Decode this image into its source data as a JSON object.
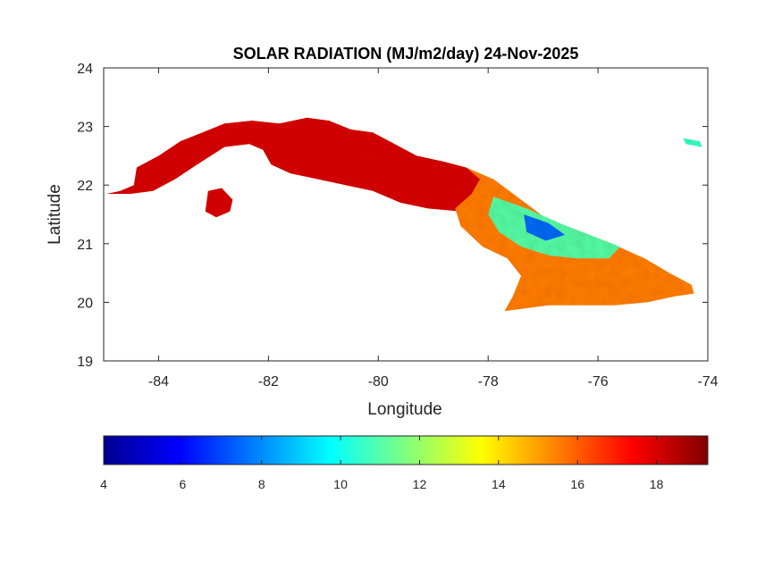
{
  "chart_data": {
    "type": "heatmap",
    "title": "SOLAR RADIATION (MJ/m2/day) 24-Nov-2025",
    "xlabel": "Longitude",
    "ylabel": "Latitude",
    "xlim": [
      -85,
      -74
    ],
    "ylim": [
      19,
      24
    ],
    "xticks": [
      -84,
      -82,
      -80,
      -78,
      -76,
      -74
    ],
    "yticks": [
      19,
      20,
      21,
      22,
      23,
      24
    ],
    "grid": false,
    "colormap": "jet",
    "colorbar": {
      "orientation": "horizontal",
      "placement": "bottom",
      "range": [
        4,
        19.3
      ],
      "ticks": [
        4,
        6,
        8,
        10,
        12,
        14,
        16,
        18
      ]
    },
    "regions": [
      {
        "name": "",
        "value_range": [
          17,
          19
        ],
        "outline": [
          [
            -84.95,
            21.85
          ],
          [
            -84.7,
            21.9
          ],
          [
            -84.45,
            22.0
          ],
          [
            -84.4,
            22.3
          ],
          [
            -84.0,
            22.5
          ],
          [
            -83.6,
            22.75
          ],
          [
            -83.2,
            22.9
          ],
          [
            -82.8,
            23.05
          ],
          [
            -82.3,
            23.1
          ],
          [
            -81.8,
            23.05
          ],
          [
            -81.3,
            23.15
          ],
          [
            -80.9,
            23.1
          ],
          [
            -80.5,
            22.95
          ],
          [
            -80.1,
            22.9
          ],
          [
            -79.7,
            22.7
          ],
          [
            -79.3,
            22.5
          ],
          [
            -78.8,
            22.4
          ],
          [
            -78.4,
            22.3
          ],
          [
            -78.05,
            22.15
          ],
          [
            -78.05,
            21.8
          ],
          [
            -78.5,
            21.55
          ],
          [
            -79.1,
            21.6
          ],
          [
            -79.6,
            21.7
          ],
          [
            -80.1,
            21.9
          ],
          [
            -80.6,
            22.0
          ],
          [
            -81.1,
            22.1
          ],
          [
            -81.6,
            22.2
          ],
          [
            -81.95,
            22.35
          ],
          [
            -82.1,
            22.6
          ],
          [
            -82.35,
            22.7
          ],
          [
            -82.8,
            22.65
          ],
          [
            -83.3,
            22.35
          ],
          [
            -83.7,
            22.1
          ],
          [
            -84.1,
            21.9
          ],
          [
            -84.5,
            21.85
          ]
        ]
      },
      {
        "name": "",
        "value_range": [
          17,
          19
        ],
        "outline": [
          [
            -83.1,
            21.9
          ],
          [
            -82.85,
            21.95
          ],
          [
            -82.65,
            21.75
          ],
          [
            -82.7,
            21.55
          ],
          [
            -82.95,
            21.45
          ],
          [
            -83.15,
            21.55
          ]
        ]
      },
      {
        "name": "",
        "value_range": [
          14,
          17
        ],
        "outline": [
          [
            -78.4,
            22.3
          ],
          [
            -77.9,
            22.1
          ],
          [
            -77.4,
            21.75
          ],
          [
            -76.9,
            21.4
          ],
          [
            -76.3,
            21.2
          ],
          [
            -75.75,
            21.0
          ],
          [
            -75.15,
            20.75
          ],
          [
            -74.7,
            20.5
          ],
          [
            -74.3,
            20.3
          ],
          [
            -74.25,
            20.15
          ],
          [
            -74.6,
            20.1
          ],
          [
            -75.1,
            20.0
          ],
          [
            -75.7,
            19.95
          ],
          [
            -76.3,
            19.95
          ],
          [
            -76.9,
            19.95
          ],
          [
            -77.3,
            19.9
          ],
          [
            -77.7,
            19.85
          ],
          [
            -77.55,
            20.1
          ],
          [
            -77.4,
            20.45
          ],
          [
            -77.65,
            20.75
          ],
          [
            -78.1,
            20.95
          ],
          [
            -78.5,
            21.3
          ],
          [
            -78.6,
            21.6
          ],
          [
            -78.3,
            21.85
          ],
          [
            -78.15,
            22.1
          ]
        ]
      },
      {
        "name": "",
        "value_range": [
          9,
          13
        ],
        "outline": [
          [
            -77.9,
            21.8
          ],
          [
            -77.3,
            21.6
          ],
          [
            -76.7,
            21.35
          ],
          [
            -76.15,
            21.15
          ],
          [
            -75.6,
            20.95
          ],
          [
            -75.8,
            20.75
          ],
          [
            -76.4,
            20.75
          ],
          [
            -76.9,
            20.8
          ],
          [
            -77.4,
            20.95
          ],
          [
            -77.8,
            21.2
          ],
          [
            -78.0,
            21.5
          ]
        ]
      },
      {
        "name": "",
        "value_range": [
          6,
          9
        ],
        "outline": [
          [
            -77.35,
            21.5
          ],
          [
            -76.9,
            21.35
          ],
          [
            -76.6,
            21.15
          ],
          [
            -76.95,
            21.05
          ],
          [
            -77.3,
            21.2
          ]
        ]
      },
      {
        "name": "",
        "value_range": [
          8,
          13
        ],
        "outline": [
          [
            -74.45,
            22.8
          ],
          [
            -74.15,
            22.75
          ],
          [
            -74.1,
            22.65
          ],
          [
            -74.4,
            22.7
          ]
        ]
      }
    ]
  }
}
